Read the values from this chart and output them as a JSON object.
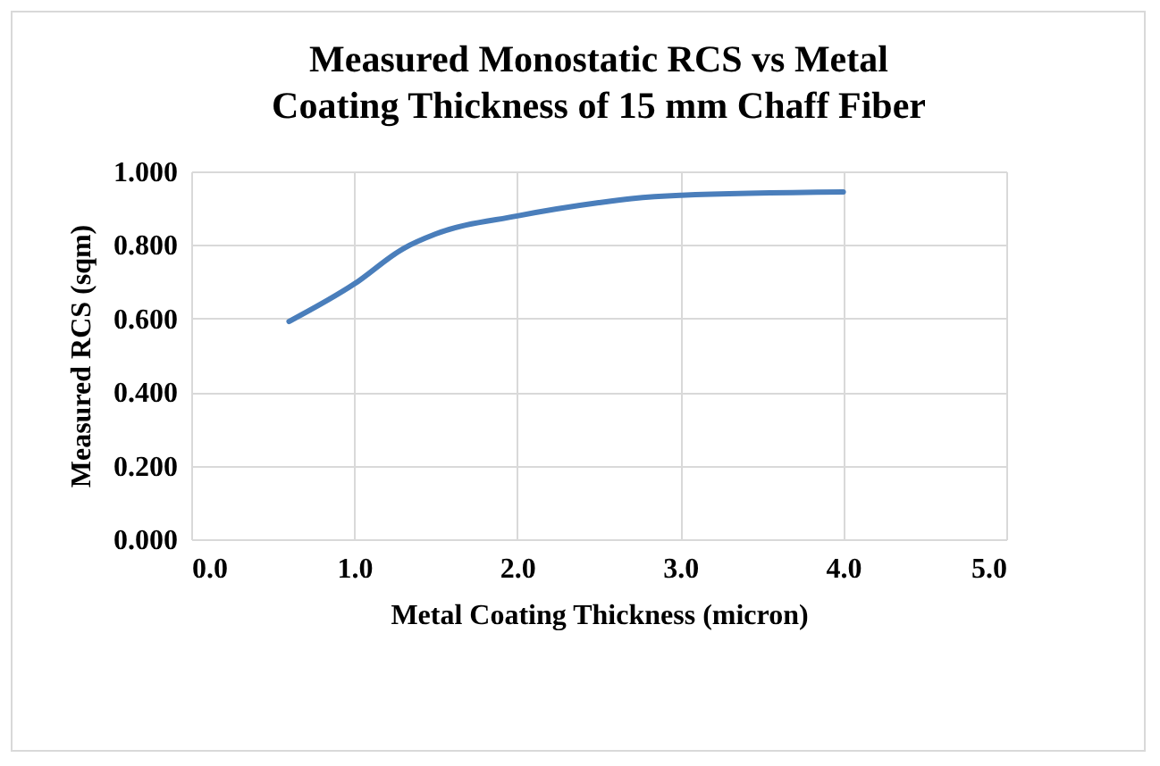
{
  "chart_data": {
    "type": "line",
    "title": "Measured Monostatic RCS vs Metal Coating Thickness of 15 mm Chaff Fiber",
    "xlabel": "Metal Coating Thickness (micron)",
    "ylabel": "Measured  RCS (sqm)",
    "x": [
      0.6,
      1.0,
      1.3,
      1.5,
      2.0,
      2.5,
      2.7,
      3.0,
      4.0
    ],
    "series": [
      {
        "color": "#4a7ebb",
        "values": [
          0.592,
          0.694,
          0.79,
          0.83,
          0.879,
          0.915,
          0.926,
          0.935,
          0.944
        ]
      }
    ],
    "xlim": [
      0,
      5
    ],
    "xticks": [
      {
        "value": 0,
        "label": "0.0"
      },
      {
        "value": 1,
        "label": "1.0"
      },
      {
        "value": 2,
        "label": "2.0"
      },
      {
        "value": 3,
        "label": "3.0"
      },
      {
        "value": 4,
        "label": "4.0"
      },
      {
        "value": 5,
        "label": "5.0"
      }
    ],
    "ylim": [
      0,
      1
    ],
    "yticks": [
      {
        "value": 0,
        "label": "0.000"
      },
      {
        "value": 0.2,
        "label": "0.200"
      },
      {
        "value": 0.4,
        "label": "0.400"
      },
      {
        "value": 0.6,
        "label": "0.600"
      },
      {
        "value": 0.8,
        "label": "0.800"
      },
      {
        "value": 1,
        "label": "1.000"
      }
    ],
    "grid": true,
    "marker": "none",
    "line_style": "solid"
  }
}
